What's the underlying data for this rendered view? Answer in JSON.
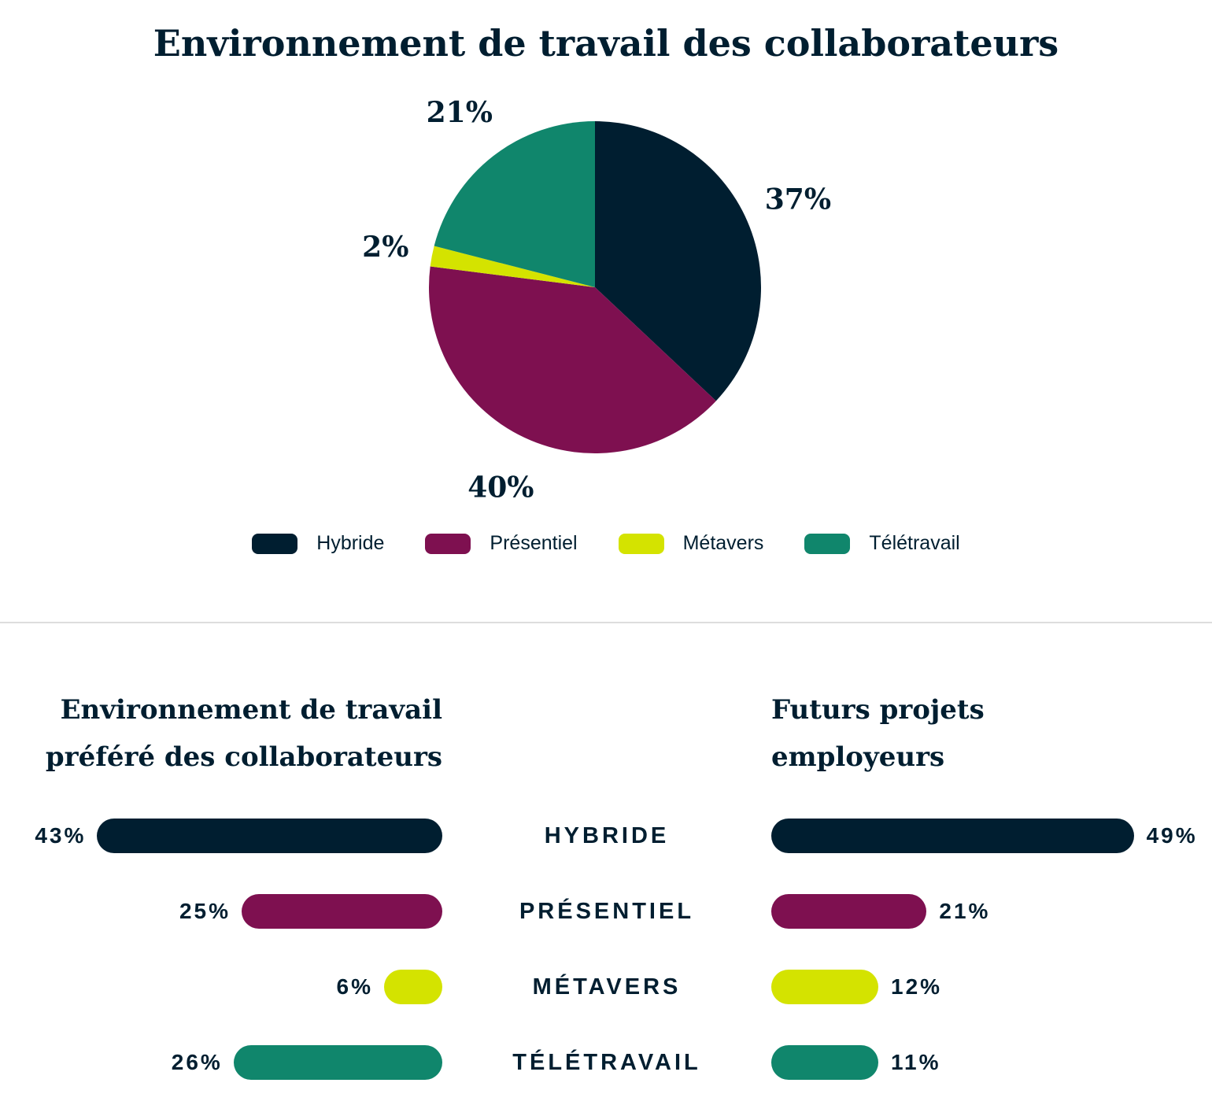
{
  "title": "Environnement de travail des collaborateurs",
  "colors": {
    "Hybride": "#001e30",
    "Présentiel": "#7e1050",
    "Métavers": "#d4e300",
    "Télétravail": "#10866c"
  },
  "chart_data": [
    {
      "type": "pie",
      "title": "Environnement de travail des collaborateurs",
      "categories": [
        "Hybride",
        "Présentiel",
        "Métavers",
        "Télétravail"
      ],
      "values": [
        37,
        40,
        2,
        21
      ],
      "labels": [
        "37%",
        "40%",
        "2%",
        "21%"
      ],
      "legend": "bottom"
    },
    {
      "type": "bar",
      "title": "Environnement de travail préféré des collaborateurs",
      "title_lines": [
        "Environnement de travail",
        "préféré des collaborateurs"
      ],
      "categories": [
        "HYBRIDE",
        "PRÉSENTIEL",
        "MÉTAVERS",
        "TÉLÉTRAVAIL"
      ],
      "values": [
        43,
        25,
        6,
        26
      ],
      "labels": [
        "43%",
        "25%",
        "6%",
        "26%"
      ]
    },
    {
      "type": "bar",
      "title": "Futurs projets employeurs",
      "title_lines": [
        "Futurs projets",
        "employeurs"
      ],
      "categories": [
        "HYBRIDE",
        "PRÉSENTIEL",
        "MÉTAVERS",
        "TÉLÉTRAVAIL"
      ],
      "values": [
        49,
        21,
        12,
        11
      ],
      "labels": [
        "49%",
        "21%",
        "12%",
        "11%"
      ]
    }
  ],
  "legend": [
    "Hybride",
    "Présentiel",
    "Métavers",
    "Télétravail"
  ]
}
